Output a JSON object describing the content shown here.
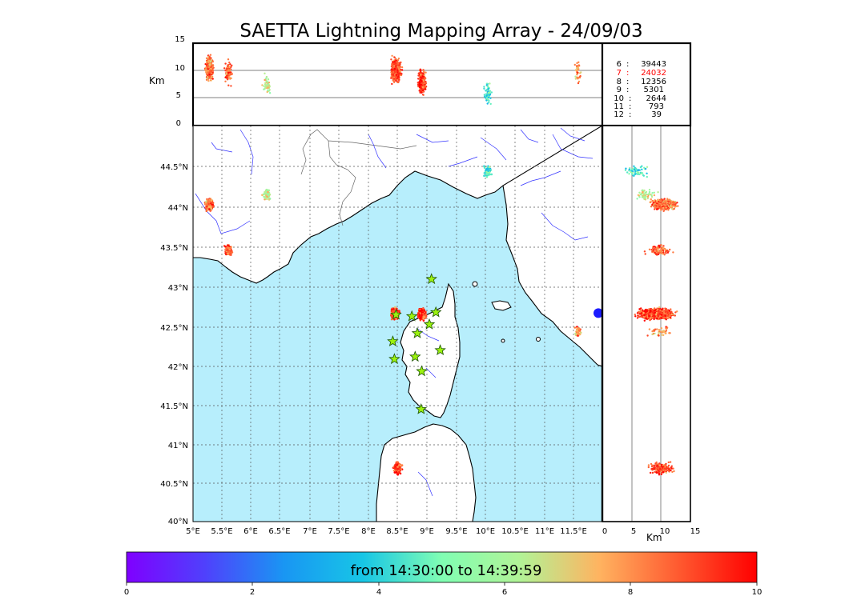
{
  "title": "SAETTA Lightning Mapping Array - 24/09/03",
  "colors": {
    "sea": "#b7eefc",
    "coast": "#000000",
    "river": "#3333ff",
    "border": "#555555",
    "grid": "#555555",
    "highlight_text": "#ff0000",
    "station_fill": "#9cf20f",
    "station_stroke": "#1a5200"
  },
  "top_panel": {
    "ylabel": "Km",
    "yticks": [
      "0",
      "5",
      "10",
      "15"
    ]
  },
  "side_panel": {
    "xlabel": "Km",
    "xticks": [
      "0",
      "5",
      "10",
      "15"
    ]
  },
  "map": {
    "lon_range": [
      5,
      12.5
    ],
    "lat_range": [
      40,
      44.9
    ],
    "lon_ticks": [
      "5°E",
      "5.5°E",
      "6°E",
      "6.5°E",
      "7°E",
      "7.5°E",
      "8°E",
      "8.5°E",
      "9°E",
      "9.5°E",
      "10°E",
      "10.5°E",
      "11°E",
      "11.5°E"
    ],
    "lat_ticks": [
      "40°N",
      "40.5°N",
      "41°N",
      "41.5°N",
      "42°N",
      "42.5°N",
      "43°N",
      "43.5°N",
      "44°N",
      "44.5°N"
    ]
  },
  "station_count": {
    "rows": [
      {
        "stations": "6",
        "sep": ":",
        "count": "39443",
        "highlight": false
      },
      {
        "stations": "7",
        "sep": ":",
        "count": "24032",
        "highlight": true
      },
      {
        "stations": "8",
        "sep": ":",
        "count": "12356",
        "highlight": false
      },
      {
        "stations": "9",
        "sep": ":",
        "count": "5301",
        "highlight": false
      },
      {
        "stations": "10",
        "sep": ":",
        "count": "2644",
        "highlight": false
      },
      {
        "stations": "11",
        "sep": ":",
        "count": "793",
        "highlight": false
      },
      {
        "stations": "12",
        "sep": ":",
        "count": "39",
        "highlight": false
      }
    ]
  },
  "colorbar": {
    "label": "from 14:30:00 to 14:39:59",
    "ticks": [
      "0",
      "2",
      "4",
      "6",
      "8",
      "10"
    ],
    "range": [
      0,
      10
    ]
  },
  "stations": [
    {
      "lon": 9.37,
      "lat": 43.0
    },
    {
      "lon": 8.72,
      "lat": 42.56
    },
    {
      "lon": 9.01,
      "lat": 42.54
    },
    {
      "lon": 9.45,
      "lat": 42.59
    },
    {
      "lon": 9.33,
      "lat": 42.44
    },
    {
      "lon": 9.11,
      "lat": 42.33
    },
    {
      "lon": 8.66,
      "lat": 42.23
    },
    {
      "lon": 9.07,
      "lat": 42.04
    },
    {
      "lon": 8.69,
      "lat": 42.01
    },
    {
      "lon": 9.53,
      "lat": 42.12
    },
    {
      "lon": 9.19,
      "lat": 41.86
    },
    {
      "lon": 9.18,
      "lat": 41.39
    }
  ],
  "clusters": [
    {
      "lon": 5.3,
      "lat": 43.92,
      "alt": 10.5,
      "time": 8.5,
      "n": 420
    },
    {
      "lon": 5.65,
      "lat": 43.36,
      "alt": 9.5,
      "time": 8.6,
      "n": 90
    },
    {
      "lon": 6.35,
      "lat": 44.05,
      "alt": 7.5,
      "time": 6.5,
      "n": 50
    },
    {
      "lon": 8.7,
      "lat": 42.57,
      "alt": 10.0,
      "time": 9.0,
      "n": 380
    },
    {
      "lon": 9.2,
      "lat": 42.57,
      "alt": 8.0,
      "time": 9.3,
      "n": 360
    },
    {
      "lon": 8.75,
      "lat": 40.66,
      "alt": 10.0,
      "time": 9.0,
      "n": 180
    },
    {
      "lon": 10.4,
      "lat": 44.33,
      "alt": 6.0,
      "time": 4.5,
      "n": 60
    },
    {
      "lon": 12.05,
      "lat": 42.35,
      "alt": 10.0,
      "time": 8.0,
      "n": 40
    }
  ]
}
